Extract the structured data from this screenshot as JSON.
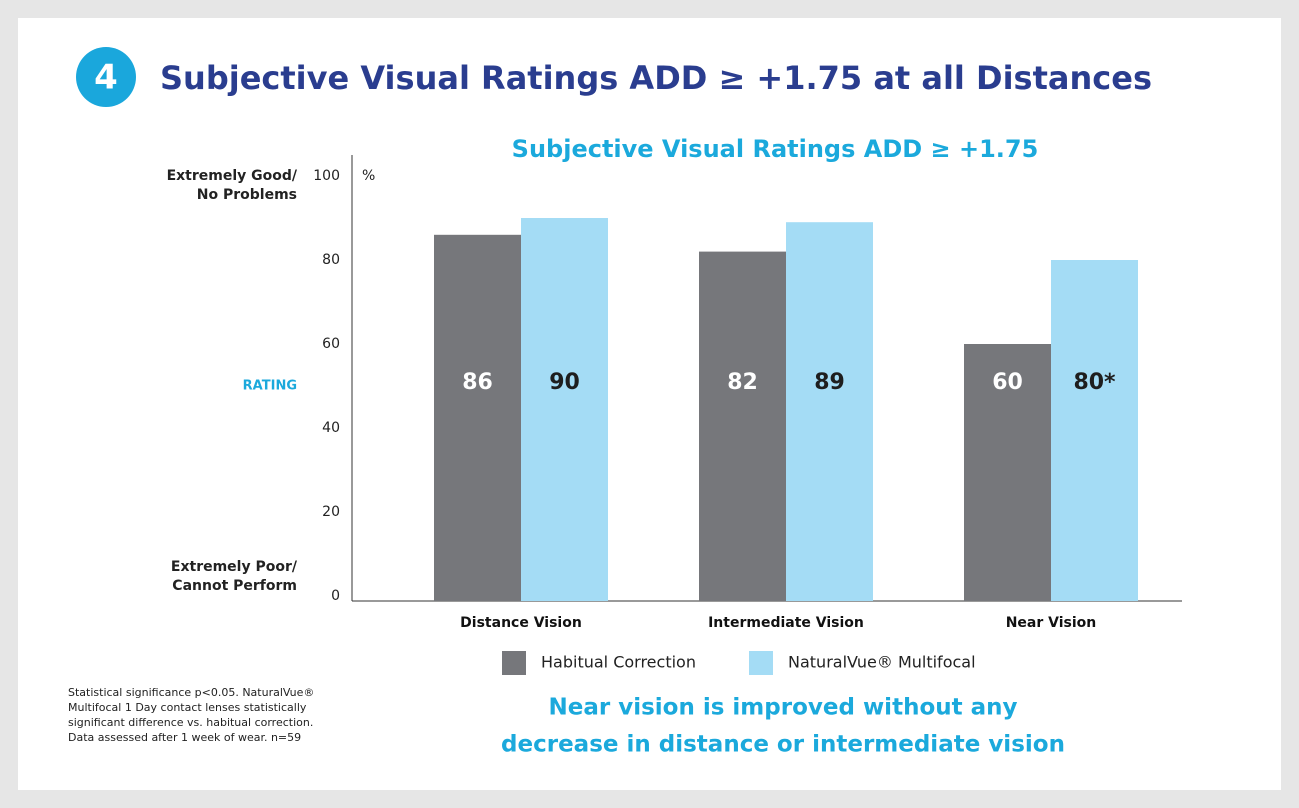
{
  "header": {
    "badge": "4",
    "title": "Subjective Visual Ratings ADD ≥ +1.75 at all Distances"
  },
  "chart_data": {
    "type": "bar",
    "title": "Subjective Visual Ratings ADD ≥ +1.75",
    "ylabel": "RATING",
    "yunit": "%",
    "top_label": [
      "Extremely Good/",
      "No Problems"
    ],
    "bottom_label": [
      "Extremely Poor/",
      "Cannot Perform"
    ],
    "categories": [
      "Distance Vision",
      "Intermediate Vision",
      "Near Vision"
    ],
    "series": [
      {
        "name": "Habitual Correction",
        "color": "#76777b",
        "values": [
          86,
          82,
          60
        ]
      },
      {
        "name": "NaturalVue® Multifocal",
        "color": "#a4dcf5",
        "values": [
          90,
          89,
          80
        ],
        "value_labels": [
          "90",
          "89",
          "80*"
        ]
      }
    ],
    "ylim": [
      0,
      100
    ],
    "yticks": [
      0,
      20,
      40,
      60,
      80,
      100
    ],
    "grid": false
  },
  "footnote": [
    "Statistical significance p<0.05. NaturalVue®",
    "Multifocal 1 Day contact lenses statistically",
    "significant difference vs. habitual correction.",
    "Data assessed after 1 week of wear. n=59"
  ],
  "conclusion": [
    "Near vision is improved without any",
    "decrease in distance or intermediate vision"
  ]
}
